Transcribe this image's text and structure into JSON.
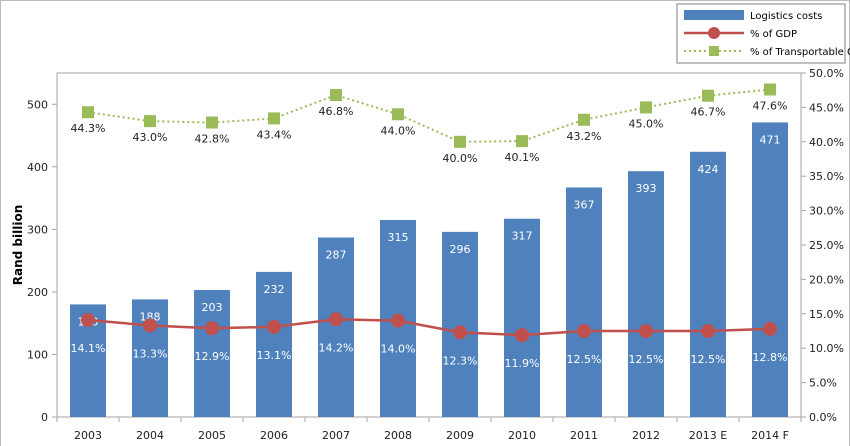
{
  "chart_data": {
    "type": "bar+line",
    "title": "",
    "xlabel": "",
    "ylabel": "Rand billion",
    "ylim": [
      0,
      550
    ],
    "y_ticks": [
      "0",
      "100",
      "200",
      "300",
      "400",
      "500"
    ],
    "y2lim": [
      0,
      50
    ],
    "y2_ticks": [
      "0.0%",
      "5.0%",
      "10.0%",
      "15.0%",
      "20.0%",
      "25.0%",
      "30.0%",
      "35.0%",
      "40.0%",
      "45.0%",
      "50.0%"
    ],
    "categories": [
      "2003",
      "2004",
      "2005",
      "2006",
      "2007",
      "2008",
      "2009",
      "2010",
      "2011",
      "2012",
      "2013 E",
      "2014 F"
    ],
    "grid": false,
    "legend_placement": "top-right",
    "series": [
      {
        "name": "Logistics costs",
        "type": "bar",
        "axis": "left",
        "color": "#4f81bd",
        "values": [
          180,
          188,
          203,
          232,
          287,
          315,
          296,
          317,
          367,
          393,
          424,
          471
        ],
        "labels": [
          "180",
          "188",
          "203",
          "232",
          "287",
          "315",
          "296",
          "317",
          "367",
          "393",
          "424",
          "471"
        ]
      },
      {
        "name": "% of GDP",
        "type": "line",
        "axis": "right",
        "color": "#c0504d",
        "marker": "circle",
        "values": [
          14.1,
          13.3,
          12.9,
          13.1,
          14.2,
          14.0,
          12.3,
          11.9,
          12.5,
          12.5,
          12.5,
          12.8
        ],
        "labels": [
          "14.1%",
          "13.3%",
          "12.9%",
          "13.1%",
          "14.2%",
          "14.0%",
          "12.3%",
          "11.9%",
          "12.5%",
          "12.5%",
          "12.5%",
          "12.8%"
        ]
      },
      {
        "name": "% of Transportable GDP",
        "type": "line",
        "axis": "right",
        "color": "#9bbb59",
        "marker": "square",
        "line_style": "dotted",
        "values": [
          44.3,
          43.0,
          42.8,
          43.4,
          46.8,
          44.0,
          40.0,
          40.1,
          43.2,
          45.0,
          46.7,
          47.6
        ],
        "labels": [
          "44.3%",
          "43.0%",
          "42.8%",
          "43.4%",
          "46.8%",
          "44.0%",
          "40.0%",
          "40.1%",
          "43.2%",
          "45.0%",
          "46.7%",
          "47.6%"
        ]
      }
    ]
  }
}
